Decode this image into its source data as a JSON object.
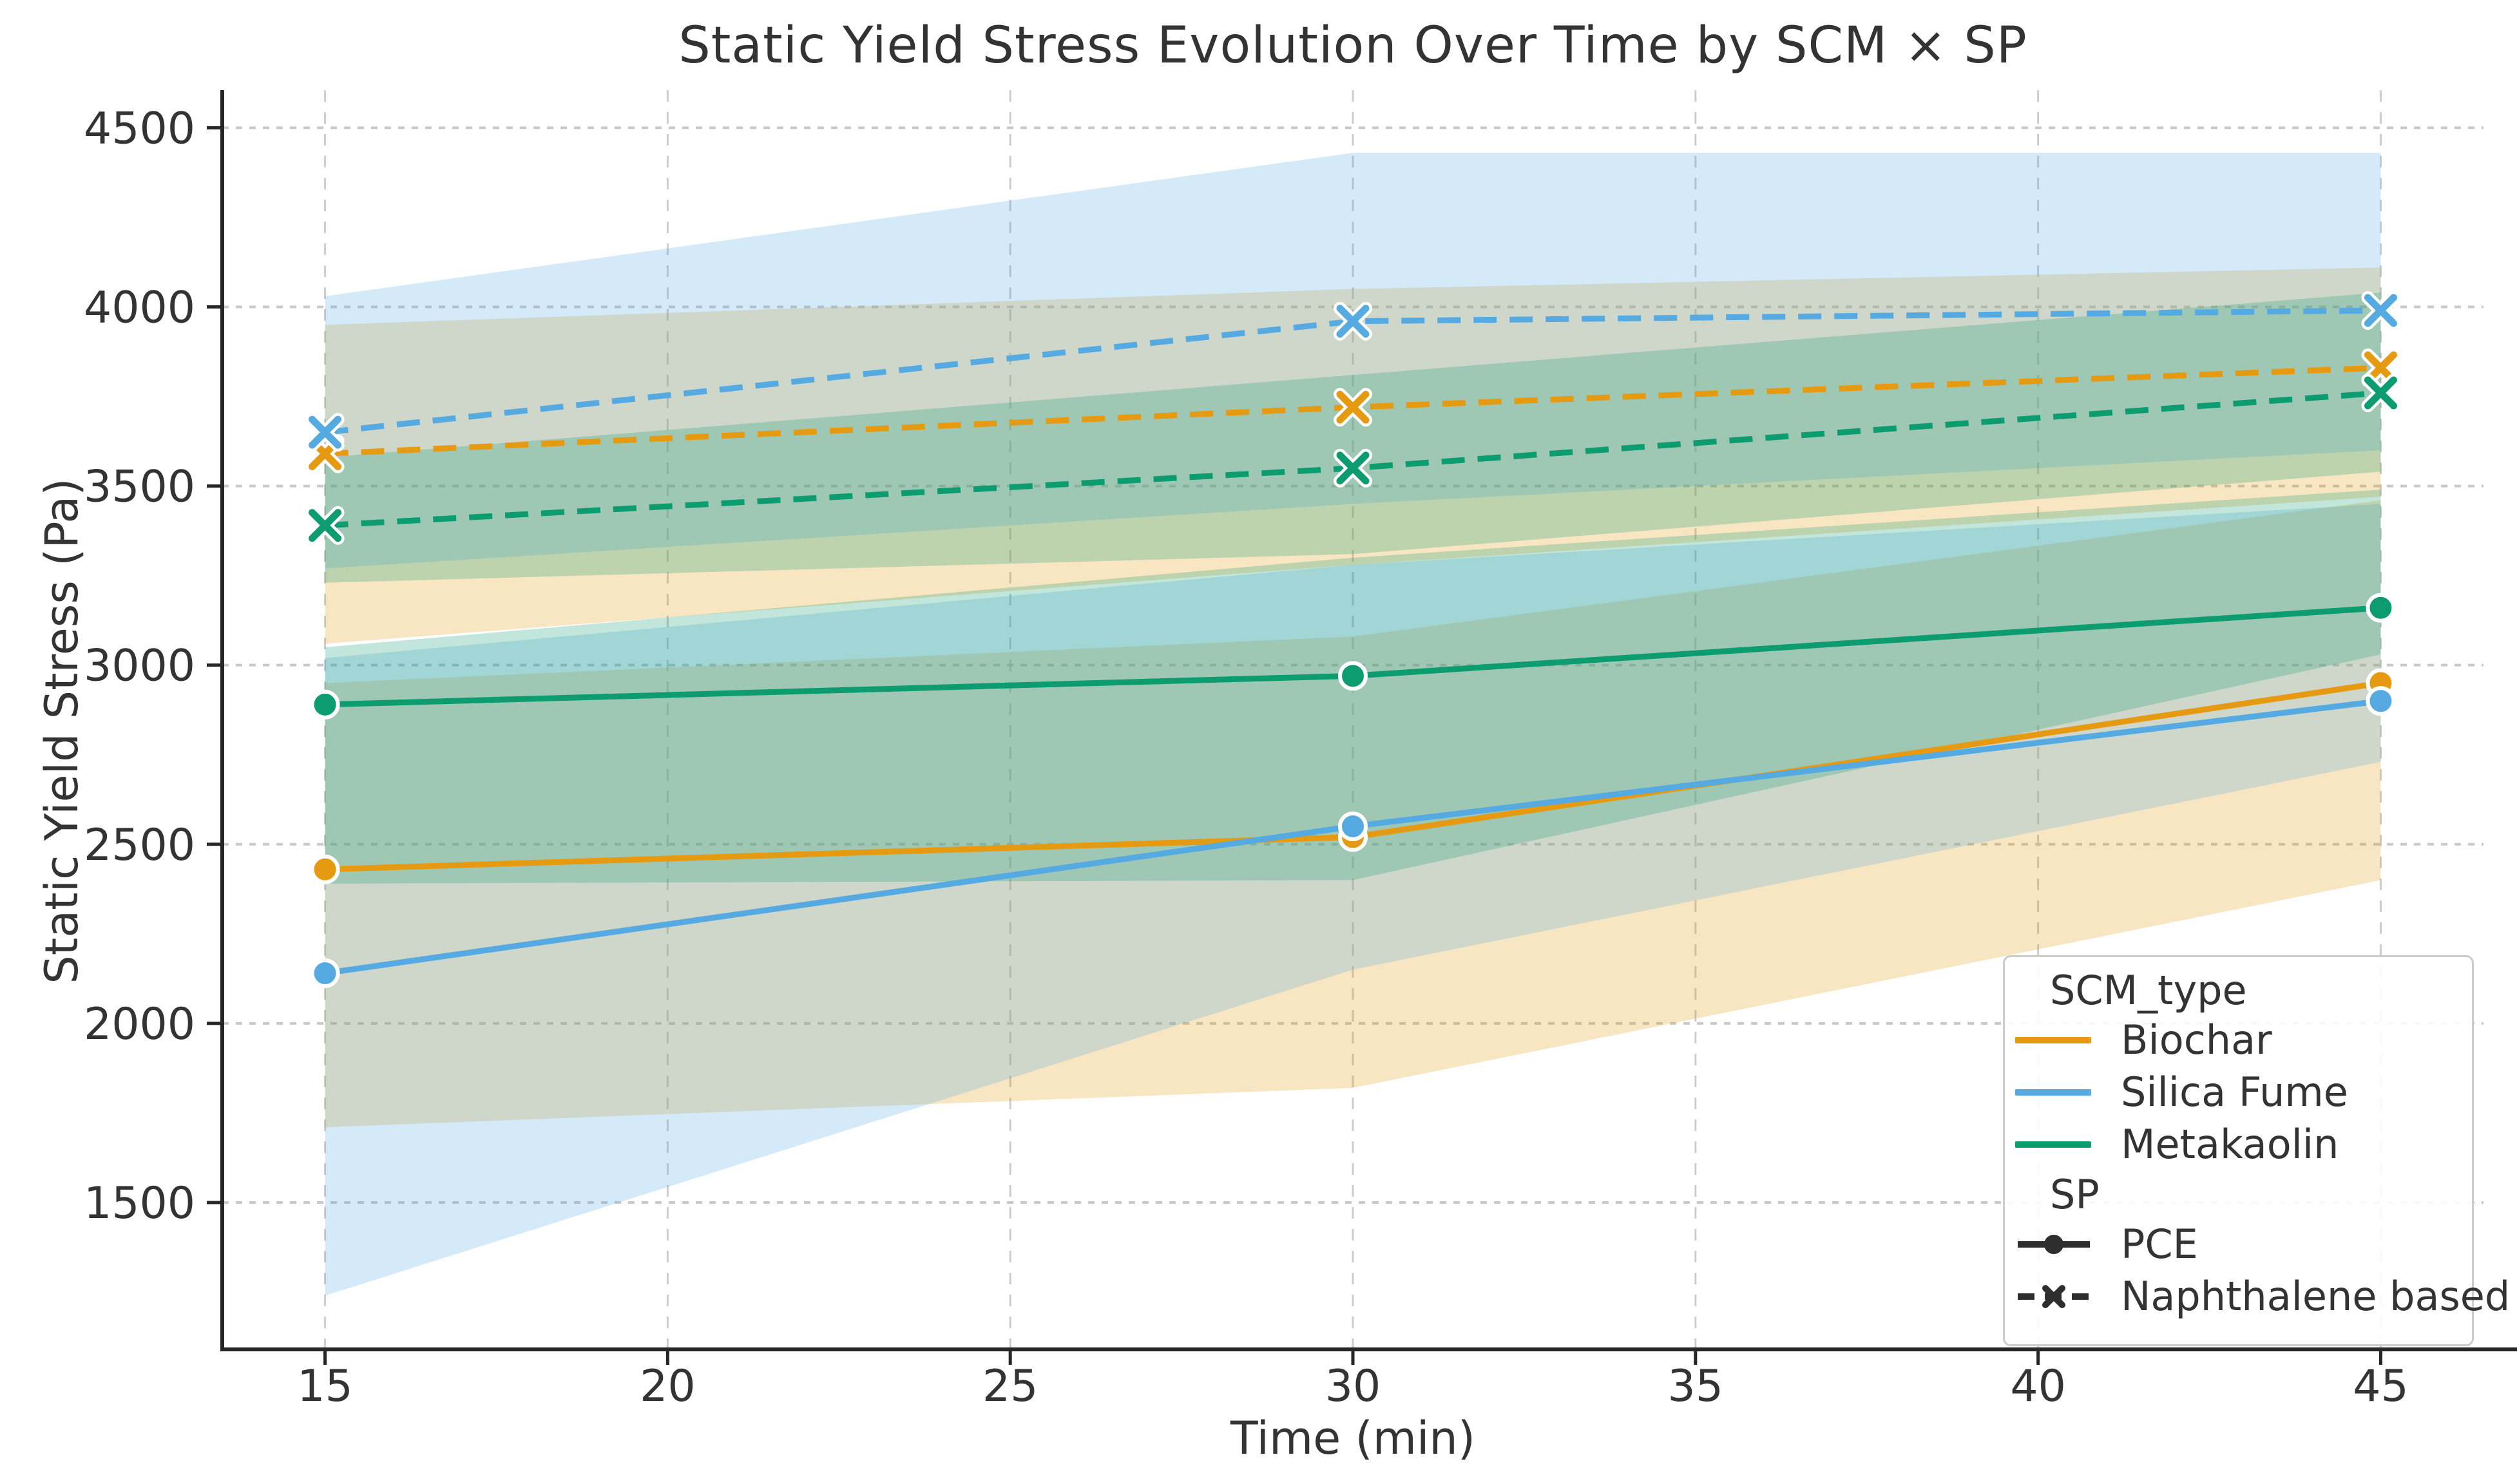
{
  "chart_data": {
    "type": "line",
    "title": "Static Yield Stress Evolution Over Time by SCM × SP",
    "xlabel": "Time (min)",
    "ylabel": "Static Yield Stress (Pa)",
    "x": [
      15,
      30,
      45
    ],
    "xticks": [
      15,
      20,
      25,
      30,
      35,
      40,
      45
    ],
    "yticks": [
      1500,
      2000,
      2500,
      3000,
      3500,
      4000,
      4500
    ],
    "xlim": [
      13.5,
      46.5
    ],
    "ylim": [
      1090,
      4605
    ],
    "grid": true,
    "band_alpha": 0.25,
    "series": [
      {
        "name": "Biochar × PCE",
        "scm": "Biochar",
        "sp": "PCE",
        "color": "#E59A11",
        "line_style": "solid",
        "marker": "circle",
        "values": [
          2430,
          2520,
          2950
        ],
        "band_lower": [
          1710,
          1820,
          2400
        ],
        "band_upper": [
          2950,
          3080,
          3460
        ]
      },
      {
        "name": "Biochar × Naphthalene based",
        "scm": "Biochar",
        "sp": "Naphthalene based",
        "color": "#E59A11",
        "line_style": "dashed",
        "marker": "x",
        "values": [
          3590,
          3720,
          3830
        ],
        "band_lower": [
          3060,
          3280,
          3470
        ],
        "band_upper": [
          3950,
          4050,
          4110
        ]
      },
      {
        "name": "Silica Fume × PCE",
        "scm": "Silica Fume",
        "sp": "PCE",
        "color": "#55AAE2",
        "line_style": "solid",
        "marker": "circle",
        "values": [
          2140,
          2550,
          2900
        ],
        "band_lower": [
          1240,
          2150,
          2730
        ],
        "band_upper": [
          3020,
          3280,
          3450
        ]
      },
      {
        "name": "Silica Fume × Naphthalene based",
        "scm": "Silica Fume",
        "sp": "Naphthalene based",
        "color": "#55AAE2",
        "line_style": "dashed",
        "marker": "x",
        "values": [
          3650,
          3960,
          3990
        ],
        "band_lower": [
          3270,
          3450,
          3600
        ],
        "band_upper": [
          4030,
          4430,
          4430
        ]
      },
      {
        "name": "Metakaolin × PCE",
        "scm": "Metakaolin",
        "sp": "PCE",
        "color": "#0D9C6F",
        "line_style": "solid",
        "marker": "circle",
        "values": [
          2890,
          2970,
          3160
        ],
        "band_lower": [
          2390,
          2400,
          3030
        ],
        "band_upper": [
          3050,
          3300,
          3490
        ]
      },
      {
        "name": "Metakaolin × Naphthalene based",
        "scm": "Metakaolin",
        "sp": "Naphthalene based",
        "color": "#0D9C6F",
        "line_style": "dashed",
        "marker": "x",
        "values": [
          3390,
          3550,
          3760
        ],
        "band_lower": [
          3230,
          3310,
          3540
        ],
        "band_upper": [
          3580,
          3810,
          4040
        ]
      }
    ],
    "legend": {
      "position": "lower right",
      "groups": [
        {
          "title": "SCM_type",
          "items": [
            {
              "label": "Biochar",
              "color": "#E59A11",
              "style": "solid",
              "marker": null
            },
            {
              "label": "Silica Fume",
              "color": "#55AAE2",
              "style": "solid",
              "marker": null
            },
            {
              "label": "Metakaolin",
              "color": "#0D9C6F",
              "style": "solid",
              "marker": null
            }
          ]
        },
        {
          "title": "SP",
          "items": [
            {
              "label": "PCE",
              "color": "#2E2E2E",
              "style": "solid",
              "marker": "circle"
            },
            {
              "label": "Naphthalene based",
              "color": "#2E2E2E",
              "style": "dashed",
              "marker": "x"
            }
          ]
        }
      ]
    },
    "colors": {
      "axis_text": "#333333",
      "spine": "#262626",
      "grid_h": "#c9c9c9",
      "grid_v": "#cdcdcd",
      "legend_border": "#cccccc"
    }
  }
}
